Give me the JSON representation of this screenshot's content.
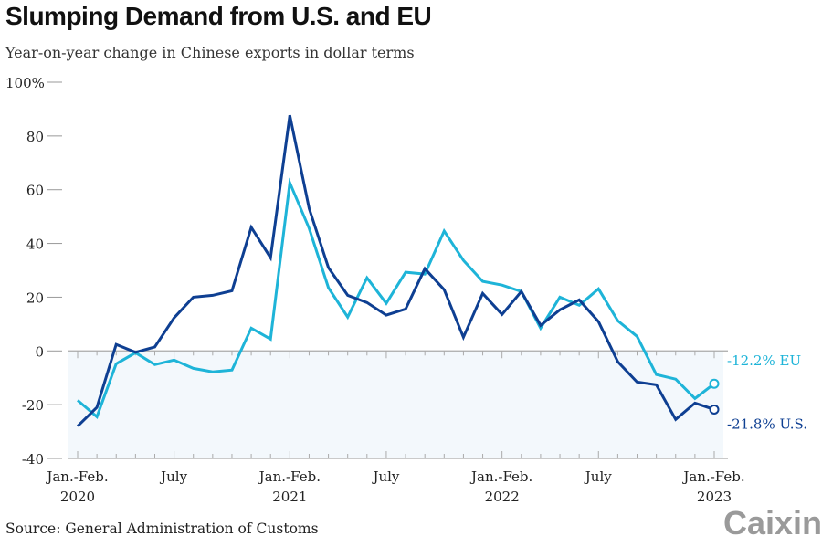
{
  "title": "Slumping Demand from U.S. and EU",
  "subtitle": "Year-on-year change in Chinese exports in dollar terms",
  "source": "Source: General Administration of Customs",
  "logo": "Caixin",
  "chart_data": {
    "type": "line",
    "title": "Slumping Demand from U.S. and EU",
    "subtitle": "Year-on-year change in Chinese exports in dollar terms",
    "ylim": [
      -40,
      100
    ],
    "yticks": [
      -40,
      -20,
      0,
      20,
      40,
      60,
      80,
      100
    ],
    "ytick_labels": [
      "-40",
      "-20",
      "0",
      "20",
      "40",
      "60",
      "80",
      "100%"
    ],
    "xtick_labels": [
      {
        "index": 0,
        "lines": [
          "Jan.-Feb.",
          "2020"
        ]
      },
      {
        "index": 5,
        "lines": [
          "July"
        ]
      },
      {
        "index": 11,
        "lines": [
          "Jan.-Feb.",
          "2021"
        ]
      },
      {
        "index": 16,
        "lines": [
          "July"
        ]
      },
      {
        "index": 22,
        "lines": [
          "Jan.-Feb.",
          "2022"
        ]
      },
      {
        "index": 27,
        "lines": [
          "July"
        ]
      },
      {
        "index": 33,
        "lines": [
          "Jan.-Feb.",
          "2023"
        ]
      }
    ],
    "x": [
      "Jan.-Feb. 2020",
      "Mar 2020",
      "Apr 2020",
      "May 2020",
      "Jun 2020",
      "Jul 2020",
      "Aug 2020",
      "Sep 2020",
      "Oct 2020",
      "Nov 2020",
      "Dec 2020",
      "Jan.-Feb. 2021",
      "Mar 2021",
      "Apr 2021",
      "May 2021",
      "Jun 2021",
      "Jul 2021",
      "Aug 2021",
      "Sep 2021",
      "Oct 2021",
      "Nov 2021",
      "Dec 2021",
      "Jan.-Feb. 2022",
      "Mar 2022",
      "Apr 2022",
      "May 2022",
      "Jun 2022",
      "Jul 2022",
      "Aug 2022",
      "Sep 2022",
      "Oct 2022",
      "Nov 2022",
      "Dec 2022",
      "Jan.-Feb. 2023"
    ],
    "series": [
      {
        "name": "U.S.",
        "color": "#0e3f92",
        "end_label": "-21.8% U.S.",
        "values": [
          -28,
          -21,
          2.4,
          -0.5,
          1.5,
          12.3,
          20,
          20.7,
          22.4,
          46,
          34.7,
          87.7,
          53,
          31,
          20.7,
          18,
          13.3,
          15.6,
          30.6,
          22.8,
          5.1,
          21.4,
          13.6,
          22.1,
          9.5,
          15.3,
          19,
          10.9,
          -4,
          -11.6,
          -12.6,
          -25.5,
          -19.4,
          -21.8
        ]
      },
      {
        "name": "EU",
        "color": "#1eb4d8",
        "end_label": "-12.2% EU",
        "values": [
          -18.4,
          -24.5,
          -4.8,
          -0.7,
          -5.1,
          -3.4,
          -6.5,
          -7.8,
          -7.1,
          8.5,
          4.4,
          62.6,
          45.6,
          23.5,
          12.6,
          27.2,
          17.7,
          29.3,
          28.6,
          44.6,
          33.7,
          25.9,
          24.5,
          22.1,
          8.5,
          20,
          17,
          23.1,
          11.2,
          5.4,
          -8.8,
          -10.5,
          -17.7,
          -12.2
        ]
      }
    ],
    "negative_region_fill": "#f3f8fc",
    "grid": false
  }
}
